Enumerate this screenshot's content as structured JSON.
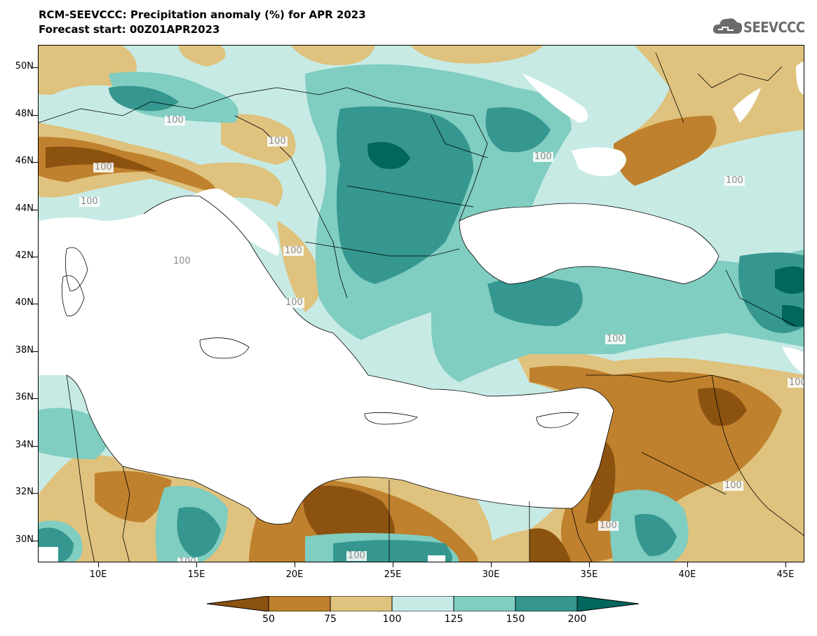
{
  "header": {
    "title_line_1": "RCM-SEEVCCC: Precipitation anomaly (%) for APR 2023",
    "title_line_2": "Forecast start: 00Z01APR2023"
  },
  "logo": {
    "text": "SEEVCCC",
    "icon": "cloud-icon"
  },
  "map": {
    "variable": "Precipitation anomaly (%)",
    "lon_range": [
      7,
      46
    ],
    "lat_range": [
      29,
      51
    ],
    "lat_labels": [
      "50N",
      "48N",
      "46N",
      "44N",
      "42N",
      "40N",
      "38N",
      "36N",
      "34N",
      "32N",
      "30N"
    ],
    "lon_labels": [
      "10E",
      "15E",
      "20E",
      "25E",
      "30E",
      "35E",
      "40E",
      "45E"
    ],
    "contour_labels": [
      "100",
      "100",
      "100",
      "100",
      "100",
      "100",
      "100",
      "100",
      "100",
      "100",
      "100",
      "100",
      "100",
      "100",
      "100"
    ]
  },
  "colorbar": {
    "levels": [
      "50",
      "75",
      "100",
      "125",
      "150",
      "200"
    ],
    "colors": [
      "#8c5210",
      "#bf812d",
      "#dfc27d",
      "#c7eae5",
      "#80cdc1",
      "#35978f",
      "#01665e"
    ]
  }
}
